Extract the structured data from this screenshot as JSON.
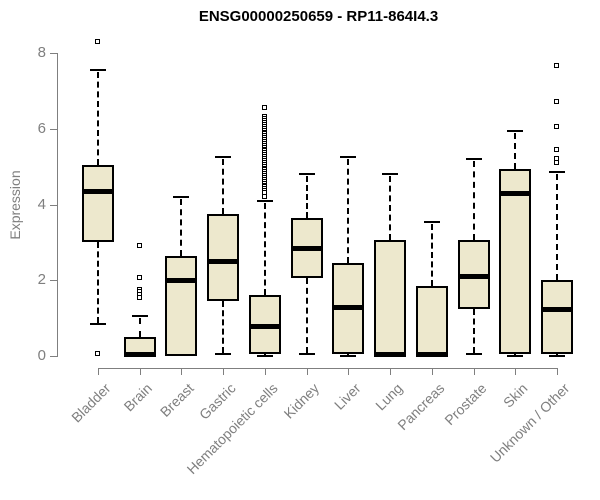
{
  "title": "ENSG00000250659 - RP11-864I4.3",
  "colors": {
    "box_fill": "#EDE8CD",
    "box_border": "#000000",
    "median": "#000000",
    "axis": "#7F7F7F",
    "title": "#000000",
    "background": "#FFFFFF"
  },
  "chart_data": {
    "type": "boxplot",
    "title": "ENSG00000250659 - RP11-864I4.3",
    "xlabel": "",
    "ylabel": "Expression",
    "ylim": [
      0,
      8
    ],
    "yticks": [
      0,
      2,
      4,
      6,
      8
    ],
    "grid": false,
    "legend": "none",
    "categories": [
      "Bladder",
      "Brain",
      "Breast",
      "Gastric",
      "Hematopoietic cells",
      "Kidney",
      "Liver",
      "Lung",
      "Pancreas",
      "Prostate",
      "Skin",
      "Unknown / Other"
    ],
    "boxes": [
      {
        "category": "Bladder",
        "whisker_low": 0.85,
        "q1": 3.0,
        "median": 4.35,
        "q3": 5.05,
        "whisker_high": 7.55,
        "outliers": [
          8.3,
          0.05
        ]
      },
      {
        "category": "Brain",
        "whisker_low": 0.0,
        "q1": 0.0,
        "median": 0.05,
        "q3": 0.5,
        "whisker_high": 1.05,
        "outliers": [
          2.9,
          2.05,
          1.75,
          1.68,
          1.6,
          1.52
        ]
      },
      {
        "category": "Breast",
        "whisker_low": 0.0,
        "q1": 0.0,
        "median": 2.0,
        "q3": 2.65,
        "whisker_high": 4.2,
        "outliers": []
      },
      {
        "category": "Gastric",
        "whisker_low": 0.05,
        "q1": 1.45,
        "median": 2.5,
        "q3": 3.75,
        "whisker_high": 5.25,
        "outliers": []
      },
      {
        "category": "Hematopoietic cells",
        "whisker_low": 0.0,
        "q1": 0.05,
        "median": 0.8,
        "q3": 1.6,
        "whisker_high": 4.1,
        "outliers": [
          6.55,
          6.3,
          6.25,
          6.2,
          6.15,
          6.1,
          6.05,
          6.0,
          5.95,
          5.9,
          5.85,
          5.8,
          5.75,
          5.7,
          5.65,
          5.6,
          5.55,
          5.5,
          5.45,
          5.4,
          5.35,
          5.3,
          5.25,
          5.2,
          5.15,
          5.1,
          5.05,
          5.0,
          4.95,
          4.9,
          4.85,
          4.8,
          4.75,
          4.7,
          4.65,
          4.6,
          4.55,
          4.5,
          4.45,
          4.4,
          4.35,
          4.3,
          4.2
        ]
      },
      {
        "category": "Kidney",
        "whisker_low": 0.05,
        "q1": 2.05,
        "median": 2.85,
        "q3": 3.65,
        "whisker_high": 4.8,
        "outliers": []
      },
      {
        "category": "Liver",
        "whisker_low": 0.0,
        "q1": 0.05,
        "median": 1.3,
        "q3": 2.45,
        "whisker_high": 5.25,
        "outliers": []
      },
      {
        "category": "Lung",
        "whisker_low": 0.0,
        "q1": 0.0,
        "median": 0.05,
        "q3": 3.05,
        "whisker_high": 4.8,
        "outliers": []
      },
      {
        "category": "Pancreas",
        "whisker_low": 0.0,
        "q1": 0.0,
        "median": 0.05,
        "q3": 1.85,
        "whisker_high": 3.55,
        "outliers": []
      },
      {
        "category": "Prostate",
        "whisker_low": 0.05,
        "q1": 1.25,
        "median": 2.1,
        "q3": 3.05,
        "whisker_high": 5.2,
        "outliers": []
      },
      {
        "category": "Skin",
        "whisker_low": 0.0,
        "q1": 0.05,
        "median": 4.3,
        "q3": 4.95,
        "whisker_high": 5.95,
        "outliers": []
      },
      {
        "category": "Unknown / Other",
        "whisker_low": 0.0,
        "q1": 0.05,
        "median": 1.25,
        "q3": 2.0,
        "whisker_high": 4.85,
        "outliers": [
          7.65,
          6.7,
          6.05,
          5.45,
          5.2,
          5.1
        ]
      }
    ]
  }
}
